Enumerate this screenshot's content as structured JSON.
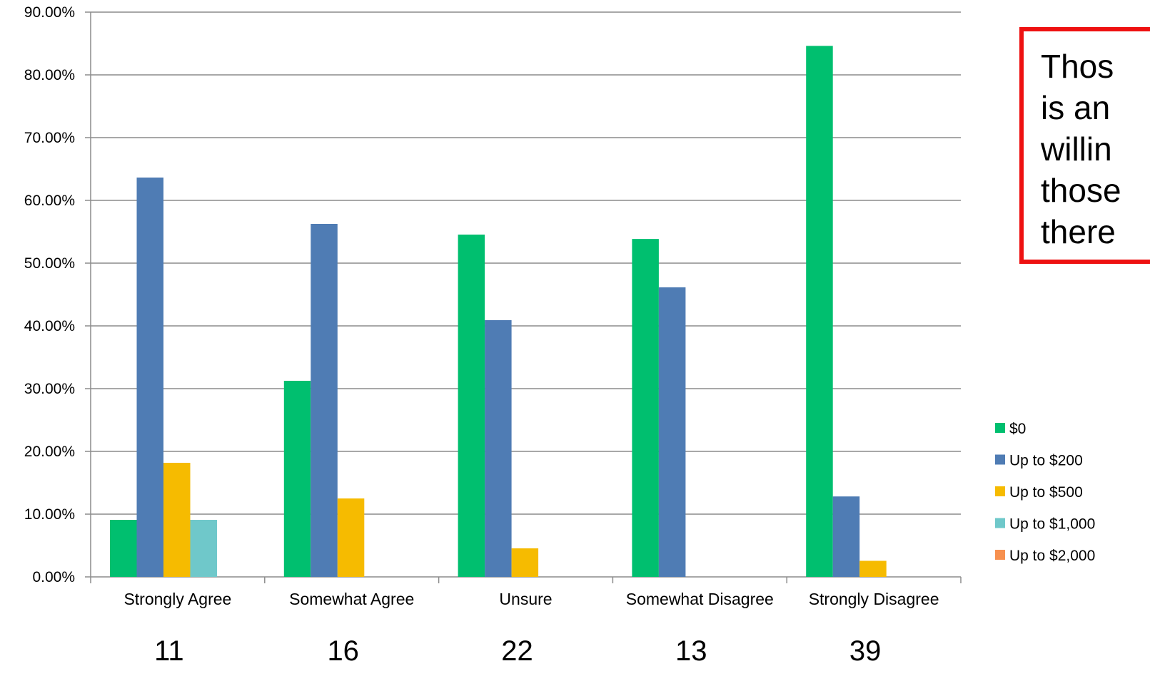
{
  "chart_data": {
    "type": "bar",
    "title": "",
    "xlabel": "",
    "ylabel": "",
    "ylim": [
      0,
      90
    ],
    "ytick_step": 10,
    "ytick_labels": [
      "0.00%",
      "10.00%",
      "20.00%",
      "30.00%",
      "40.00%",
      "50.00%",
      "60.00%",
      "70.00%",
      "80.00%",
      "90.00%"
    ],
    "grid": true,
    "legend_position": "right",
    "categories": [
      "Strongly Agree",
      "Somewhat Agree",
      "Unsure",
      "Somewhat Disagree",
      "Strongly Disagree"
    ],
    "category_counts": [
      "11",
      "16",
      "22",
      "13",
      "39"
    ],
    "series": [
      {
        "name": "$0",
        "color": "#00bf6f",
        "values": [
          9.09,
          31.25,
          54.55,
          53.85,
          84.62
        ]
      },
      {
        "name": "Up to $200",
        "color": "#4f7cb4",
        "values": [
          63.64,
          56.25,
          40.91,
          46.15,
          12.82
        ]
      },
      {
        "name": "Up to $500",
        "color": "#f6bb00",
        "values": [
          18.18,
          12.5,
          4.55,
          0,
          2.56
        ]
      },
      {
        "name": "Up to $1,000",
        "color": "#6fc8ca",
        "values": [
          9.09,
          0,
          0,
          0,
          0
        ]
      },
      {
        "name": "Up to $2,000",
        "color": "#f7904f",
        "values": [
          0,
          0,
          0,
          0,
          0
        ]
      }
    ]
  },
  "callout": {
    "border_color": "#ee1111",
    "lines": [
      "Thos",
      "is an",
      "willin",
      "those",
      "there"
    ]
  }
}
